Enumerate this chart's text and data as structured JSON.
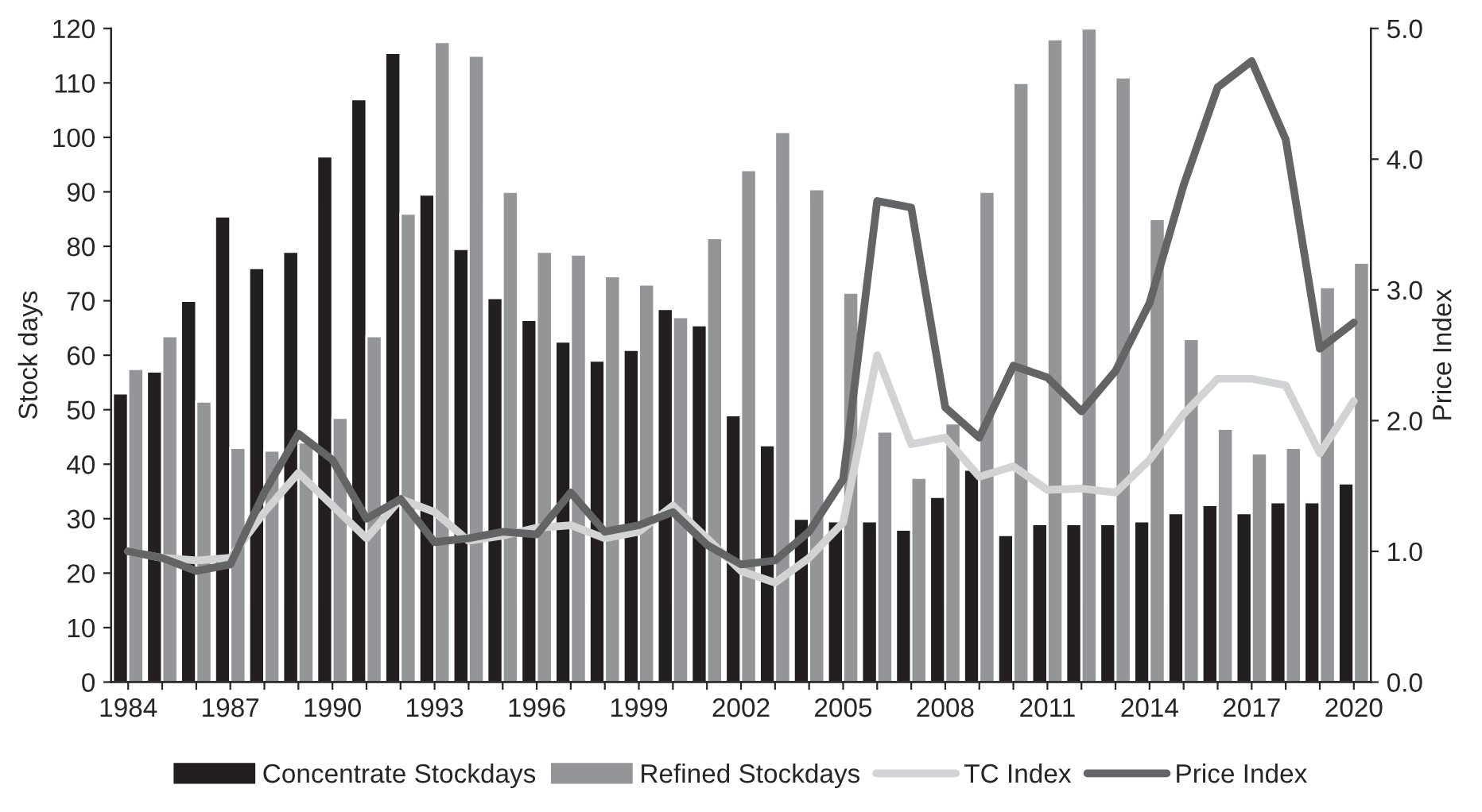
{
  "chart_data": {
    "type": "bar",
    "ylabel": "Stock days",
    "y2label": "Price Index",
    "categories": [
      "1984",
      null,
      null,
      "1987",
      null,
      null,
      "1990",
      null,
      null,
      "1993",
      null,
      null,
      "1996",
      null,
      null,
      "1999",
      null,
      null,
      "2002",
      null,
      null,
      "2005",
      null,
      null,
      "2008",
      null,
      null,
      "2011",
      null,
      null,
      "2014",
      null,
      null,
      "2017",
      null,
      null,
      "2020"
    ],
    "series": [
      {
        "name": "Concentrate Stockdays",
        "color": "#231f20",
        "values": [
          53,
          57,
          70,
          85.5,
          76,
          79,
          96.5,
          107,
          115.5,
          89.5,
          79.5,
          70.5,
          66.5,
          62.5,
          59,
          61,
          68.5,
          65.5,
          49,
          43.5,
          30,
          29.5,
          29.5,
          28,
          34,
          39,
          27,
          29,
          29,
          29,
          29.5,
          31,
          32.5,
          31,
          33,
          33,
          36.5
        ]
      },
      {
        "name": "Refined Stockdays",
        "color": "#939598",
        "values": [
          57.5,
          63.5,
          51.5,
          43,
          42.5,
          44,
          48.5,
          63.5,
          86,
          117.5,
          115,
          90,
          79,
          78.5,
          74.5,
          73,
          67,
          81.5,
          94,
          101,
          90.5,
          71.5,
          46,
          37.5,
          47.5,
          90,
          110,
          118,
          120,
          111,
          85,
          63,
          46.5,
          42,
          43,
          72.5,
          77
        ]
      },
      {
        "name": "TC Index",
        "type": "line",
        "axis": "y2",
        "color": "#d1d3d4",
        "values": [
          1.0,
          0.95,
          0.93,
          0.95,
          1.3,
          1.6,
          1.35,
          1.1,
          1.4,
          1.3,
          1.08,
          1.12,
          1.18,
          1.2,
          1.1,
          1.15,
          1.35,
          1.1,
          0.85,
          0.76,
          0.95,
          1.22,
          2.5,
          1.82,
          1.87,
          1.57,
          1.65,
          1.47,
          1.48,
          1.45,
          1.7,
          2.05,
          2.32,
          2.32,
          2.27,
          1.75,
          2.15
        ]
      },
      {
        "name": "Price Index",
        "type": "line",
        "axis": "y2",
        "color": "#636466",
        "values": [
          1.0,
          0.95,
          0.85,
          0.9,
          1.45,
          1.9,
          1.7,
          1.25,
          1.4,
          1.07,
          1.1,
          1.15,
          1.13,
          1.45,
          1.15,
          1.2,
          1.3,
          1.05,
          0.9,
          0.93,
          1.15,
          1.55,
          3.68,
          3.63,
          2.1,
          1.87,
          2.42,
          2.33,
          2.07,
          2.38,
          2.9,
          3.8,
          4.55,
          4.75,
          4.15,
          2.55,
          2.75
        ]
      }
    ],
    "ylim": [
      0,
      120
    ],
    "yticks": [
      0,
      10,
      20,
      30,
      40,
      50,
      60,
      70,
      80,
      90,
      100,
      110,
      120
    ],
    "y2lim": [
      0,
      5
    ],
    "y2ticks": [
      {
        "value": 0,
        "label": "0.0"
      },
      {
        "value": 1,
        "label": "1.0"
      },
      {
        "value": 2,
        "label": "2.0"
      },
      {
        "value": 3,
        "label": "3.0"
      },
      {
        "value": 4,
        "label": "4.0"
      },
      {
        "value": 5,
        "label": "5.0"
      }
    ],
    "legend": "bottom",
    "grid": false
  }
}
